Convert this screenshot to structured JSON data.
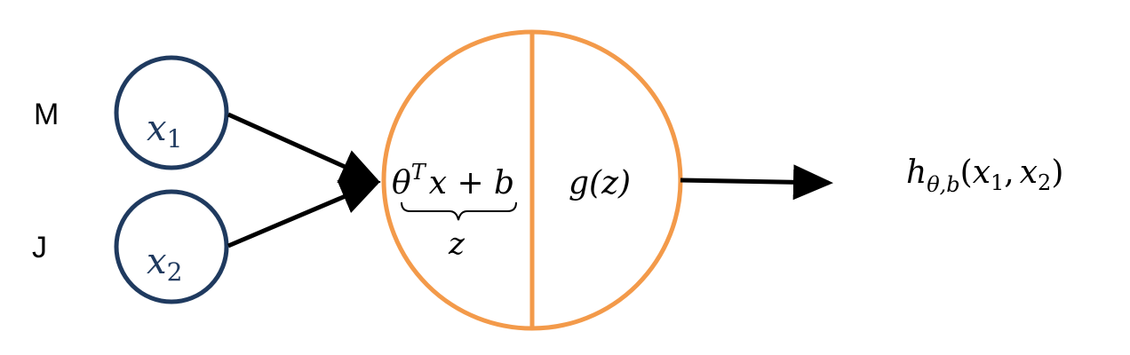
{
  "inputs": [
    {
      "row_label": "M",
      "var": "x",
      "sub": "1"
    },
    {
      "row_label": "J",
      "var": "x",
      "sub": "2"
    }
  ],
  "neuron": {
    "linear": {
      "theta": "θ",
      "sup": "T",
      "rest": "x + b"
    },
    "z_label": "z",
    "activation": "g(z)"
  },
  "output": {
    "h": "h",
    "sub": "θ,b",
    "open": "(",
    "x1": "x",
    "x1_sub": "1",
    "comma": ",",
    "x2": "x",
    "x2_sub": "2",
    "close": ")"
  },
  "colors": {
    "input_circle": "#1f3a5f",
    "neuron_circle": "#f39a4a",
    "arrows": "#000000"
  }
}
